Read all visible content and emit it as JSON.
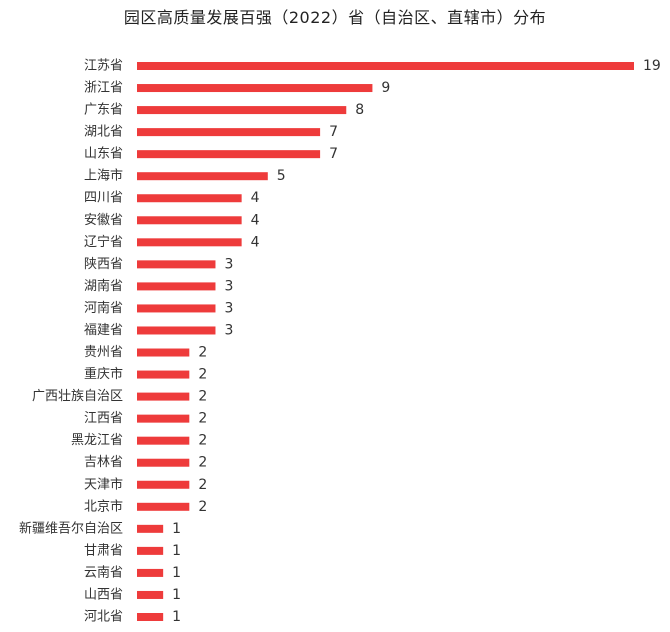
{
  "chart_data": {
    "type": "bar",
    "orientation": "horizontal",
    "title": "园区高质量发展百强（2022）省（自治区、直辖市）分布",
    "xlabel": "",
    "ylabel": "",
    "xlim": [
      0,
      19
    ],
    "grid": false,
    "legend": "none",
    "bar_color": "#EE3B3B",
    "categories": [
      "江苏省",
      "浙江省",
      "广东省",
      "湖北省",
      "山东省",
      "上海市",
      "四川省",
      "安徽省",
      "辽宁省",
      "陕西省",
      "湖南省",
      "河南省",
      "福建省",
      "贵州省",
      "重庆市",
      "广西壮族自治区",
      "江西省",
      "黑龙江省",
      "吉林省",
      "天津市",
      "北京市",
      "新疆维吾尔自治区",
      "甘肃省",
      "云南省",
      "山西省",
      "河北省"
    ],
    "values": [
      19,
      9,
      8,
      7,
      7,
      5,
      4,
      4,
      4,
      3,
      3,
      3,
      3,
      2,
      2,
      2,
      2,
      2,
      2,
      2,
      2,
      1,
      1,
      1,
      1,
      1
    ],
    "value_labels": [
      "19",
      "9",
      "8",
      "7",
      "7",
      "5",
      "4",
      "4",
      "4",
      "3",
      "3",
      "3",
      "3",
      "2",
      "2",
      "2",
      "2",
      "2",
      "2",
      "2",
      "2",
      "1",
      "1",
      "1",
      "1",
      "1"
    ]
  }
}
